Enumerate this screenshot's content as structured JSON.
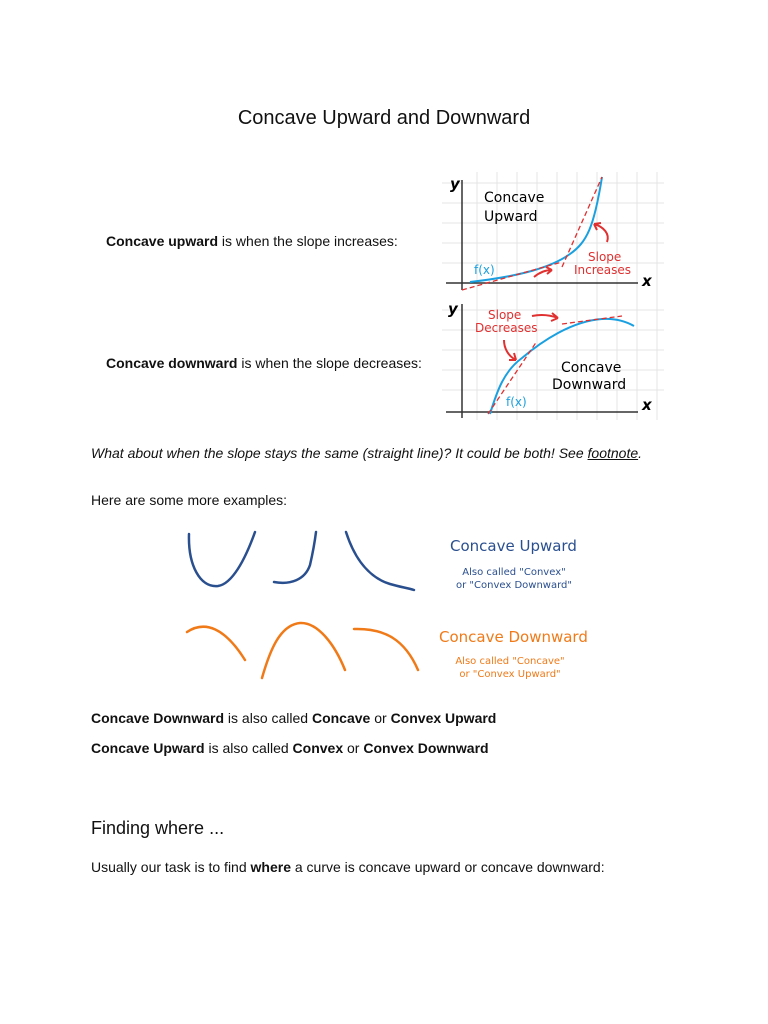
{
  "title": "Concave Upward and Downward",
  "intro": [
    {
      "term": "Concave upward",
      "text": "is when the slope increases:"
    },
    {
      "term": "Concave downward",
      "text": "is when the slope decreases:"
    }
  ],
  "graph_up": {
    "y_label": "y",
    "x_label": "x",
    "label": [
      "Concave",
      "Upward"
    ],
    "slope": [
      "Slope",
      "Increases"
    ],
    "fx": "f(x)"
  },
  "graph_down": {
    "y_label": "y",
    "x_label": "x",
    "label": [
      "Concave",
      "Downward"
    ],
    "slope": [
      "Slope",
      "Decreases"
    ],
    "fx": "f(x)"
  },
  "question": {
    "text": "What about when the slope stays the same (straight line)? It could be both! See",
    "link": "footnote",
    "end": "."
  },
  "more": "Here are some more examples:",
  "examples": {
    "up": {
      "title": "Concave Upward",
      "note": [
        "Also called \"Convex\"",
        "or \"Convex Downward\""
      ]
    },
    "down": {
      "title": "Concave Downward",
      "note": [
        "Also called \"Concave\"",
        "or \"Convex Upward\""
      ]
    }
  },
  "aliases": [
    [
      "Concave Downward",
      "is also called",
      "Concave",
      "or",
      "Convex Upward"
    ],
    [
      "Concave Upward",
      "is also called",
      "Convex",
      "or",
      "Convex Downward"
    ]
  ],
  "heading": "Finding where ...",
  "task": [
    "Usually our task is to find",
    "where",
    "a curve is concave upward or concave downward:"
  ]
}
